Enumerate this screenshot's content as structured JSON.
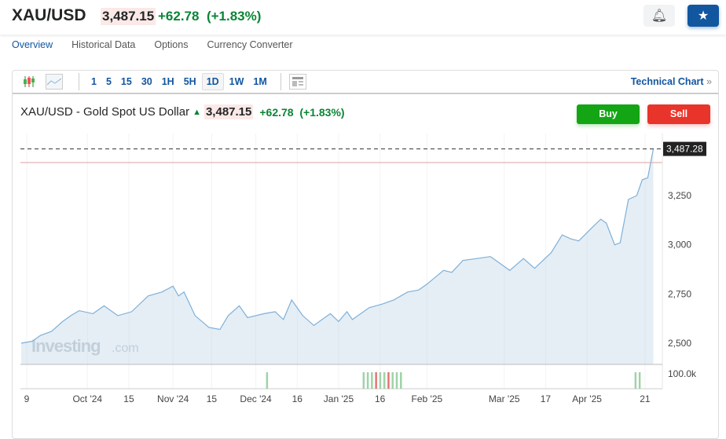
{
  "header": {
    "symbol": "XAU/USD",
    "price": "3,487.15",
    "change": "+62.78",
    "change_pct": "(+1.83%)",
    "alert_icon": "bell-plus-icon",
    "watchlist_icon": "star-icon"
  },
  "tabs": [
    "Overview",
    "Historical Data",
    "Options",
    "Currency Converter"
  ],
  "toolbar": {
    "intervals": [
      "1",
      "5",
      "15",
      "30",
      "1H",
      "5H",
      "1D",
      "1W",
      "1M"
    ],
    "selected": "1D",
    "technical_chart": "Technical Chart",
    "technical_chevron": "»"
  },
  "chart_title": {
    "name": "XAU/USD - Gold Spot US Dollar",
    "arrow": "▲",
    "price": "3,487.15",
    "change": "+62.78",
    "change_pct": "(+1.83%)"
  },
  "buttons": {
    "buy": "Buy",
    "sell": "Sell"
  },
  "colors": {
    "accent": "#1256a0",
    "up": "#0a8536",
    "buy": "#14a514",
    "sell": "#e8342a",
    "line": "#7fb0d8"
  },
  "chart_data": {
    "type": "area",
    "x_unit": "days since 2024-09-09",
    "ylim": [
      2430,
      3560
    ],
    "yticks": [
      2500,
      2750,
      3000,
      3250
    ],
    "ytick_labels": [
      "2,500",
      "2,750",
      "3,000",
      "3,250"
    ],
    "last_value_label": "3,487.28",
    "volume_label": "100.0k",
    "watermark": "Investing.com",
    "xticks": [
      {
        "d": 0,
        "l": "9"
      },
      {
        "d": 22,
        "l": "Oct '24"
      },
      {
        "d": 37,
        "l": "15"
      },
      {
        "d": 53,
        "l": "Nov '24"
      },
      {
        "d": 67,
        "l": "15"
      },
      {
        "d": 83,
        "l": "Dec '24"
      },
      {
        "d": 98,
        "l": "16"
      },
      {
        "d": 113,
        "l": "Jan '25"
      },
      {
        "d": 128,
        "l": "16"
      },
      {
        "d": 145,
        "l": "Feb '25"
      },
      {
        "d": 173,
        "l": "Mar '25"
      },
      {
        "d": 188,
        "l": "17"
      },
      {
        "d": 203,
        "l": "Apr '25"
      },
      {
        "d": 224,
        "l": "21"
      }
    ],
    "series": [
      [
        -2,
        2500
      ],
      [
        2,
        2510
      ],
      [
        5,
        2540
      ],
      [
        9,
        2560
      ],
      [
        13,
        2610
      ],
      [
        16,
        2640
      ],
      [
        19,
        2665
      ],
      [
        24,
        2650
      ],
      [
        28,
        2690
      ],
      [
        33,
        2640
      ],
      [
        38,
        2660
      ],
      [
        44,
        2740
      ],
      [
        49,
        2760
      ],
      [
        53,
        2790
      ],
      [
        55,
        2740
      ],
      [
        57,
        2760
      ],
      [
        61,
        2640
      ],
      [
        66,
        2580
      ],
      [
        70,
        2570
      ],
      [
        73,
        2640
      ],
      [
        77,
        2690
      ],
      [
        80,
        2630
      ],
      [
        86,
        2650
      ],
      [
        90,
        2660
      ],
      [
        93,
        2620
      ],
      [
        96,
        2720
      ],
      [
        100,
        2640
      ],
      [
        104,
        2590
      ],
      [
        108,
        2630
      ],
      [
        110,
        2650
      ],
      [
        113,
        2610
      ],
      [
        116,
        2660
      ],
      [
        118,
        2620
      ],
      [
        124,
        2680
      ],
      [
        129,
        2700
      ],
      [
        133,
        2720
      ],
      [
        138,
        2760
      ],
      [
        142,
        2770
      ],
      [
        145,
        2800
      ],
      [
        151,
        2870
      ],
      [
        154,
        2860
      ],
      [
        158,
        2920
      ],
      [
        163,
        2930
      ],
      [
        168,
        2940
      ],
      [
        172,
        2900
      ],
      [
        175,
        2870
      ],
      [
        180,
        2930
      ],
      [
        184,
        2880
      ],
      [
        190,
        2960
      ],
      [
        194,
        3050
      ],
      [
        197,
        3030
      ],
      [
        200,
        3020
      ],
      [
        205,
        3090
      ],
      [
        208,
        3130
      ],
      [
        210,
        3110
      ],
      [
        213,
        3000
      ],
      [
        215,
        3010
      ],
      [
        218,
        3230
      ],
      [
        221,
        3250
      ],
      [
        223,
        3330
      ],
      [
        225,
        3340
      ],
      [
        227,
        3487
      ]
    ],
    "volume": [
      {
        "d": 87,
        "c": "up"
      },
      {
        "d": 122,
        "c": "up"
      },
      {
        "d": 123.5,
        "c": "up"
      },
      {
        "d": 125,
        "c": "up"
      },
      {
        "d": 126.5,
        "c": "down"
      },
      {
        "d": 128,
        "c": "up"
      },
      {
        "d": 129.5,
        "c": "up"
      },
      {
        "d": 131,
        "c": "down"
      },
      {
        "d": 132.5,
        "c": "up"
      },
      {
        "d": 134,
        "c": "up"
      },
      {
        "d": 135.5,
        "c": "up"
      },
      {
        "d": 220.5,
        "c": "up"
      },
      {
        "d": 222,
        "c": "up"
      }
    ]
  }
}
